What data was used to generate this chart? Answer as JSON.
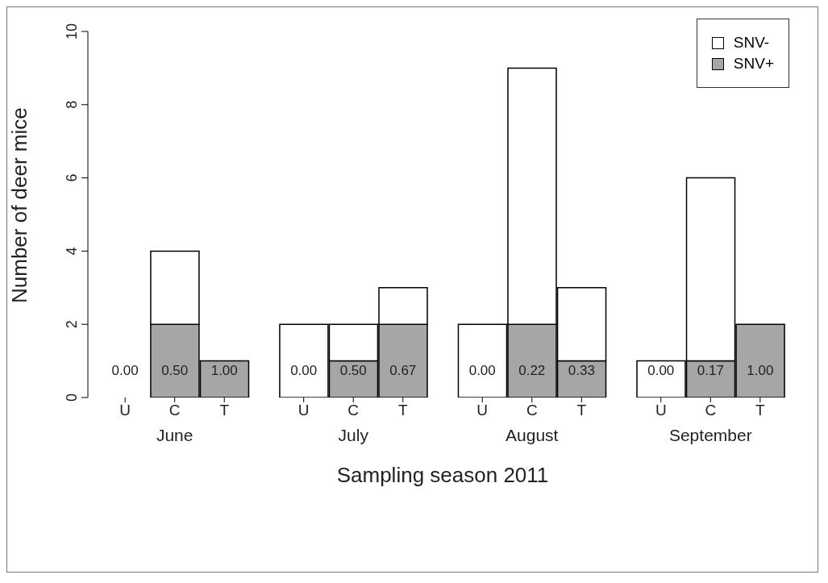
{
  "chart_data": {
    "type": "bar",
    "stacked": true,
    "xlabel": "Sampling season 2011",
    "ylabel": "Number of deer mice",
    "categories": [
      "U",
      "C",
      "T",
      "U",
      "C",
      "T",
      "U",
      "C",
      "T",
      "U",
      "C",
      "T"
    ],
    "series": [
      {
        "name": "SNV+",
        "color": "#a6a6a6",
        "values": [
          0,
          2,
          1,
          0,
          1,
          2,
          0,
          2,
          1,
          0,
          1,
          2
        ]
      },
      {
        "name": "SNV-",
        "color": "#ffffff",
        "values": [
          0,
          2,
          0,
          2,
          1,
          1,
          2,
          7,
          2,
          1,
          5,
          0
        ]
      }
    ],
    "annotations": [
      "June",
      "July",
      "August",
      "September",
      "0.00",
      "0.50",
      "1.00",
      "0.00",
      "0.50",
      "0.67",
      "0.00",
      "0.22",
      "0.33",
      "0.00",
      "0.17",
      "1.00"
    ],
    "ylim": [
      0,
      10
    ],
    "yticks": [
      0,
      2,
      4,
      6,
      8,
      10
    ],
    "grid": false,
    "legend": "top right"
  }
}
